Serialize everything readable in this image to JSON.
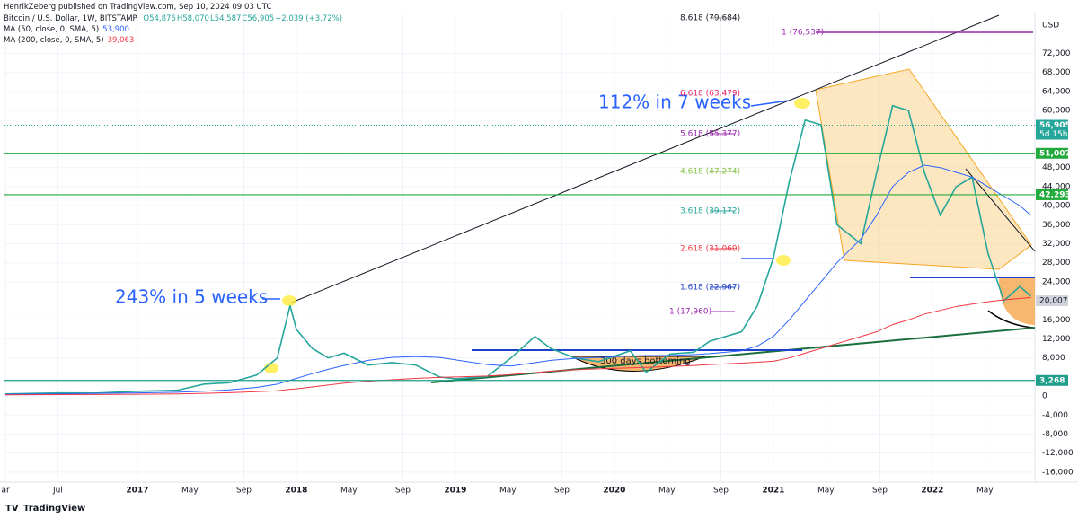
{
  "header": {
    "publisher": "HenrikZeberg published on TradingView.com, Sep 10, 2024 09:03 UTC",
    "ohlc": [
      "O54,876",
      "H58,070",
      "L54,587",
      "C56,905",
      "+2,039 (+3.72%)"
    ],
    "ma50_value": "53,900",
    "ma200_value": "39,063"
  },
  "footer": {
    "brand": "TradingView"
  },
  "chart_data": {
    "type": "line",
    "y_unit": "USD",
    "xlim": [
      2016.164,
      2022.645
    ],
    "ylim": [
      -18100,
      80400
    ],
    "xticks": [
      {
        "value": 2016.17,
        "label": "ar"
      },
      {
        "value": 2016.5,
        "label": "Jul"
      },
      {
        "value": 2017,
        "label": "2017"
      },
      {
        "value": 2017.33,
        "label": "May"
      },
      {
        "value": 2017.67,
        "label": "Sep"
      },
      {
        "value": 2018,
        "label": "2018"
      },
      {
        "value": 2018.33,
        "label": "May"
      },
      {
        "value": 2018.67,
        "label": "Sep"
      },
      {
        "value": 2019,
        "label": "2019"
      },
      {
        "value": 2019.33,
        "label": "May"
      },
      {
        "value": 2019.67,
        "label": "Sep"
      },
      {
        "value": 2020,
        "label": "2020"
      },
      {
        "value": 2020.33,
        "label": "May"
      },
      {
        "value": 2020.67,
        "label": "Sep"
      },
      {
        "value": 2021,
        "label": "2021"
      },
      {
        "value": 2021.33,
        "label": "May"
      },
      {
        "value": 2021.67,
        "label": "Sep"
      },
      {
        "value": 2022,
        "label": "2022"
      },
      {
        "value": 2022.33,
        "label": "May"
      }
    ],
    "yticks": [
      {
        "value": 72000,
        "label": "72,000"
      },
      {
        "value": 68000,
        "label": "68,000"
      },
      {
        "value": 64000,
        "label": "64,000"
      },
      {
        "value": 60000,
        "label": "60,000"
      },
      {
        "value": 48000,
        "label": "48,000"
      },
      {
        "value": 44000,
        "label": "44,000"
      },
      {
        "value": 40000,
        "label": "40,000"
      },
      {
        "value": 36000,
        "label": "36,000"
      },
      {
        "value": 32000,
        "label": "32,000"
      },
      {
        "value": 28000,
        "label": "28,000"
      },
      {
        "value": 24000,
        "label": "24,000"
      },
      {
        "value": 16000,
        "label": "16,000"
      },
      {
        "value": 12000,
        "label": "12,000"
      },
      {
        "value": 8000,
        "label": "8,000"
      },
      0,
      {
        "value": -4000,
        "label": "-4,000"
      },
      {
        "value": -8000,
        "label": "-8,000"
      },
      {
        "value": -12000,
        "label": "-12,000"
      },
      {
        "value": -16000,
        "label": "-16,000"
      }
    ],
    "x": [
      2016.17,
      2016.5,
      2016.75,
      2017.0,
      2017.25,
      2017.42,
      2017.58,
      2017.75,
      2017.88,
      2017.96,
      2018.0,
      2018.1,
      2018.2,
      2018.3,
      2018.45,
      2018.6,
      2018.75,
      2018.9,
      2019.0,
      2019.2,
      2019.35,
      2019.5,
      2019.6,
      2019.75,
      2019.9,
      2020.1,
      2020.2,
      2020.35,
      2020.5,
      2020.6,
      2020.8,
      2020.9,
      2021.0,
      2021.1,
      2021.2,
      2021.3,
      2021.4,
      2021.55,
      2021.65,
      2021.75,
      2021.85,
      2021.95,
      2022.05,
      2022.15,
      2022.25,
      2022.35,
      2022.45,
      2022.55,
      2022.62
    ],
    "series": [
      {
        "name": "Bitcoin / U.S. Dollar, 1W, BITSTAMP",
        "color": "#26a69a",
        "values": [
          420,
          650,
          620,
          1000,
          1200,
          2500,
          2800,
          4400,
          8000,
          19000,
          14000,
          10000,
          8000,
          9000,
          6500,
          7000,
          6500,
          4000,
          3600,
          4100,
          8000,
          12500,
          10000,
          8000,
          7200,
          9500,
          5000,
          8800,
          9200,
          11500,
          13500,
          19000,
          29000,
          45000,
          58000,
          57000,
          36000,
          32000,
          47000,
          61000,
          60000,
          47000,
          38000,
          44000,
          46000,
          30000,
          20000,
          23000,
          21000
        ]
      },
      {
        "name": "MA (50, close, 0, SMA, 5)",
        "color": "#2962ff",
        "values": [
          380,
          450,
          560,
          650,
          800,
          1000,
          1300,
          1800,
          2500,
          3300,
          3700,
          4700,
          5600,
          6400,
          7500,
          8100,
          8300,
          8100,
          7600,
          6600,
          6300,
          7000,
          7500,
          7900,
          8100,
          8400,
          8500,
          8500,
          8700,
          8900,
          9500,
          10500,
          12500,
          16000,
          20000,
          24000,
          28000,
          33000,
          38000,
          44000,
          47000,
          48500,
          48000,
          47000,
          46000,
          44000,
          42000,
          40000,
          38000
        ]
      },
      {
        "name": "MA (200, close, 0, SMA, 5)",
        "color": "#f23645",
        "values": [
          250,
          290,
          330,
          380,
          450,
          550,
          700,
          900,
          1100,
          1400,
          1500,
          1900,
          2300,
          2700,
          3100,
          3400,
          3700,
          3900,
          4000,
          4200,
          4500,
          4900,
          5200,
          5500,
          5700,
          5900,
          6000,
          6200,
          6400,
          6600,
          6900,
          7100,
          7300,
          8000,
          9000,
          10000,
          11000,
          12500,
          13500,
          15000,
          16000,
          17200,
          18000,
          18800,
          19300,
          19800,
          20200,
          20500,
          20700
        ]
      }
    ],
    "levels": [
      {
        "value": 51007,
        "label": "51,007",
        "color": "#22ab3c"
      },
      {
        "value": 42293,
        "label": "42,293",
        "color": "#22ab3c"
      },
      {
        "value": 3268,
        "label": "3,268",
        "color": "#1f9e8a"
      }
    ],
    "last_price": {
      "value": 56905,
      "label": "56,905",
      "countdown": "5d 15h"
    },
    "ma_label": {
      "value": 20007,
      "label": "20,007"
    },
    "fib_labels": [
      "8.618 (79,684)",
      "1 (76,537)",
      "6.618 (63,479)",
      "5.618 (55,377)",
      "4.618 (47,274)",
      "3.618 (39,172)",
      "2.618 (31,069)",
      "1.618 (22,967)",
      "1 (17,960)"
    ],
    "annotations": [
      "243% in 5 weeks",
      "112% in 7 weeks",
      "300 days bottoming"
    ]
  }
}
